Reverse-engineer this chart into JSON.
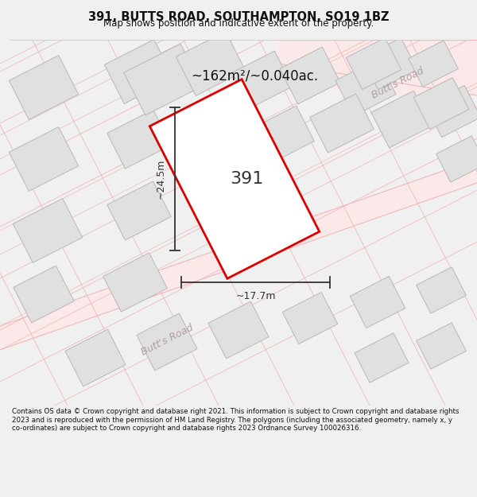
{
  "title": "391, BUTTS ROAD, SOUTHAMPTON, SO19 1BZ",
  "subtitle": "Map shows position and indicative extent of the property.",
  "area_label": "~162m²/~0.040ac.",
  "plot_number": "391",
  "dim_width": "~17.7m",
  "dim_height": "~24.5m",
  "footer": "Contains OS data © Crown copyright and database right 2021. This information is subject to Crown copyright and database rights 2023 and is reproduced with the permission of HM Land Registry. The polygons (including the associated geometry, namely x, y co-ordinates) are subject to Crown copyright and database rights 2023 Ordnance Survey 100026316.",
  "bg_color": "#f0f0f0",
  "map_bg": "#ffffff",
  "road_fill": "#fbe8e8",
  "road_line": "#f0b8b8",
  "building_color": "#e0e0e0",
  "building_edge": "#b8b8b8",
  "highlight_color": "#dd0000",
  "highlight_fill": "#ffffff",
  "road_label_color": "#b0a0a0",
  "dim_color": "#333333",
  "title_color": "#111111",
  "road_band_color": "#f5d8d8"
}
